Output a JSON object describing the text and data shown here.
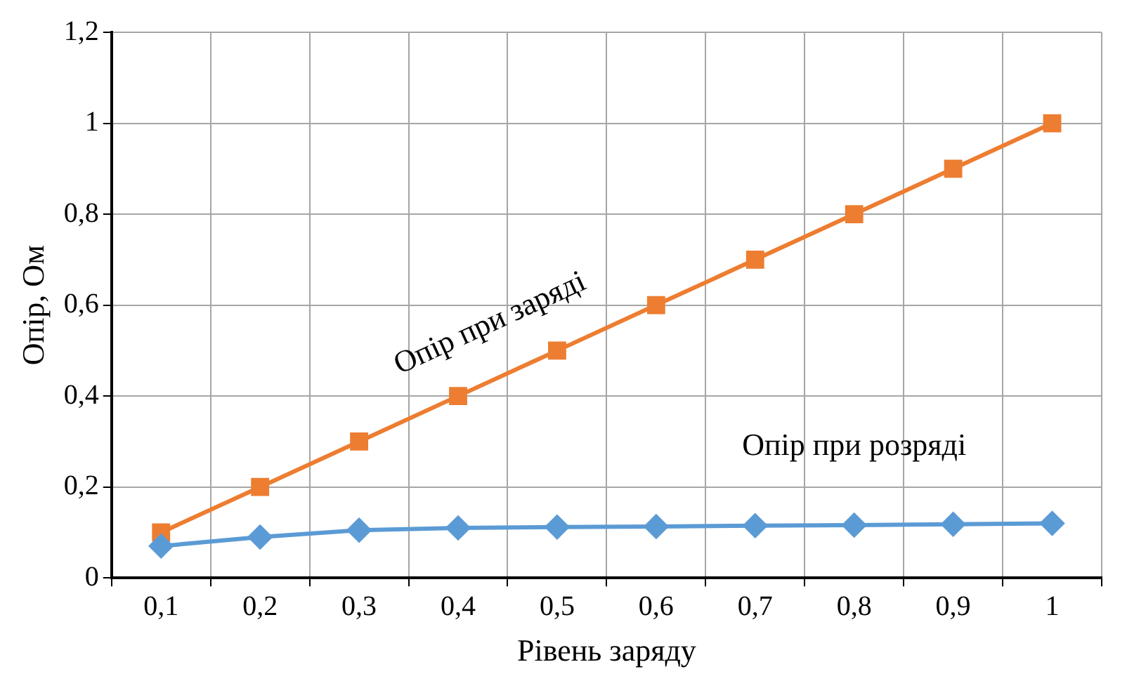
{
  "chart_data": {
    "type": "line",
    "xlabel": "Рівень заряду",
    "ylabel": "Опір, Ом",
    "categories": [
      "0,1",
      "0,2",
      "0,3",
      "0,4",
      "0,5",
      "0,6",
      "0,7",
      "0,8",
      "0,9",
      "1"
    ],
    "series": [
      {
        "name": "Опір при розряді",
        "color": "#5b9bd5",
        "marker": "diamond",
        "values": [
          0.07,
          0.09,
          0.105,
          0.11,
          0.112,
          0.113,
          0.115,
          0.116,
          0.118,
          0.12
        ]
      },
      {
        "name": "Опір при заряді",
        "color": "#ed7d31",
        "marker": "square",
        "values": [
          0.1,
          0.2,
          0.3,
          0.4,
          0.5,
          0.6,
          0.7,
          0.8,
          0.9,
          1
        ]
      }
    ],
    "ylim": [
      0,
      1.2
    ],
    "yticks": [
      0,
      {
        "value": 0.2,
        "label": "0,2"
      },
      {
        "value": 0.4,
        "label": "0,4"
      },
      {
        "value": 0.6,
        "label": "0,6"
      },
      {
        "value": 0.8,
        "label": "0,8"
      },
      1,
      {
        "value": 1.2,
        "label": "1,2"
      }
    ],
    "grid": true,
    "legend": false,
    "line_style": "solid"
  }
}
